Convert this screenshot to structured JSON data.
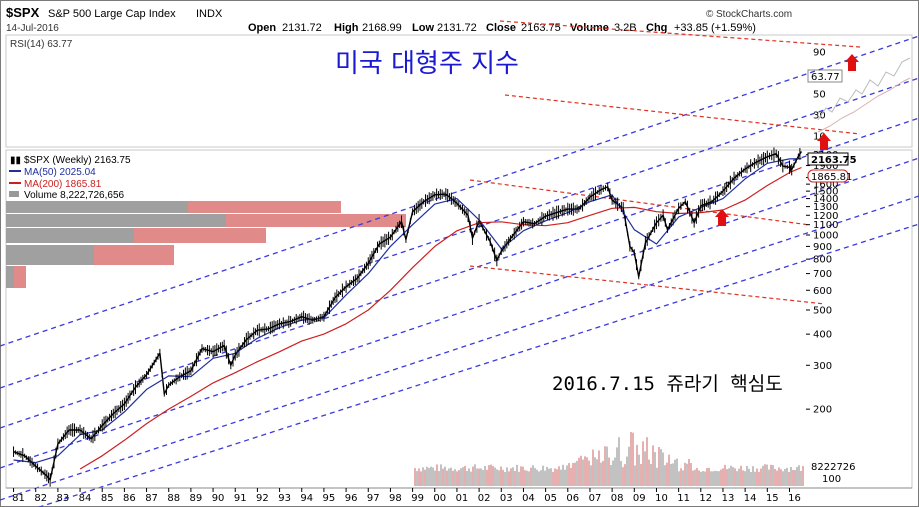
{
  "header": {
    "symbol": "$SPX",
    "name": "S&P 500 Large Cap Index",
    "exchange": "INDX",
    "date": "14-Jul-2016",
    "open_label": "Open",
    "open": "2131.72",
    "high_label": "High",
    "high": "2168.99",
    "low_label": "Low",
    "low": "2131.72",
    "close_label": "Close",
    "close": "2163.75",
    "volume_label": "Volume",
    "volume": "3.2B",
    "chg_label": "Chg",
    "chg": "+33.85 (+1.59%)",
    "brand": "StockCharts.com"
  },
  "rsi": {
    "label": "RSI(14) 63.77",
    "value": "63.77",
    "ticks": [
      "90",
      "70",
      "50",
      "30",
      "10"
    ]
  },
  "legend": {
    "price": "$SPX (Weekly) 2163.75",
    "ma50": "MA(50) 2025.04",
    "ma200": "MA(200) 1865.81",
    "volume": "Volume 8,222,726,656"
  },
  "annotations": {
    "title_kr": "미국 대형주 지수",
    "note_kr": "2016.7.15 쥬라기 핵심도"
  },
  "price_tags": {
    "close": "2163.75",
    "ma200": "1865.81",
    "volume": "8222726",
    "vol_tick": "100"
  },
  "colors": {
    "price": "#000000",
    "ma50": "#1f2fa0",
    "ma200": "#cc2020",
    "channel_blue": "#3a3ae0",
    "channel_red": "#e03020",
    "vbp_gray": "#a0a0a0",
    "vbp_red": "#e08a8a",
    "title_blue": "#1a1ad0",
    "arrow": "#e01010"
  },
  "chart_data": {
    "type": "line",
    "title": "S&P 500 Large Cap Index",
    "xlabel": "",
    "ylabel": "",
    "yscale": "log",
    "x_ticks": [
      "81",
      "82",
      "83",
      "84",
      "85",
      "86",
      "87",
      "88",
      "89",
      "90",
      "91",
      "92",
      "93",
      "94",
      "95",
      "96",
      "97",
      "98",
      "99",
      "00",
      "01",
      "02",
      "03",
      "04",
      "05",
      "06",
      "07",
      "08",
      "09",
      "10",
      "11",
      "12",
      "13",
      "14",
      "15",
      "16"
    ],
    "y_ticks": [
      2100,
      1900,
      1700,
      1600,
      1500,
      1400,
      1300,
      1200,
      1100,
      1000,
      900,
      800,
      700,
      600,
      500,
      400,
      300,
      200
    ],
    "ylim": [
      95,
      2250
    ],
    "xlim": [
      1980.75,
      2016.7
    ],
    "series": [
      {
        "name": "$SPX (Weekly)",
        "points": [
          [
            1981.0,
            135
          ],
          [
            1981.5,
            130
          ],
          [
            1982.0,
            118
          ],
          [
            1982.5,
            108
          ],
          [
            1982.65,
            104
          ],
          [
            1983.0,
            145
          ],
          [
            1983.5,
            165
          ],
          [
            1984.0,
            165
          ],
          [
            1984.5,
            152
          ],
          [
            1985.0,
            172
          ],
          [
            1985.5,
            192
          ],
          [
            1986.0,
            210
          ],
          [
            1986.5,
            245
          ],
          [
            1987.0,
            275
          ],
          [
            1987.6,
            335
          ],
          [
            1987.8,
            230
          ],
          [
            1988.0,
            250
          ],
          [
            1988.5,
            270
          ],
          [
            1989.0,
            285
          ],
          [
            1989.5,
            350
          ],
          [
            1990.0,
            340
          ],
          [
            1990.5,
            360
          ],
          [
            1990.8,
            300
          ],
          [
            1991.0,
            330
          ],
          [
            1991.5,
            380
          ],
          [
            1992.0,
            415
          ],
          [
            1992.5,
            420
          ],
          [
            1993.0,
            440
          ],
          [
            1993.5,
            450
          ],
          [
            1994.0,
            470
          ],
          [
            1994.5,
            455
          ],
          [
            1995.0,
            470
          ],
          [
            1995.5,
            560
          ],
          [
            1996.0,
            620
          ],
          [
            1996.5,
            670
          ],
          [
            1997.0,
            770
          ],
          [
            1997.5,
            920
          ],
          [
            1998.0,
            980
          ],
          [
            1998.5,
            1130
          ],
          [
            1998.7,
            960
          ],
          [
            1999.0,
            1240
          ],
          [
            1999.5,
            1360
          ],
          [
            2000.0,
            1450
          ],
          [
            2000.5,
            1460
          ],
          [
            2001.0,
            1340
          ],
          [
            2001.5,
            1200
          ],
          [
            2001.7,
            970
          ],
          [
            2002.0,
            1140
          ],
          [
            2002.5,
            940
          ],
          [
            2002.8,
            790
          ],
          [
            2003.0,
            860
          ],
          [
            2003.5,
            990
          ],
          [
            2004.0,
            1130
          ],
          [
            2004.5,
            1110
          ],
          [
            2005.0,
            1190
          ],
          [
            2005.5,
            1230
          ],
          [
            2006.0,
            1270
          ],
          [
            2006.5,
            1270
          ],
          [
            2007.0,
            1420
          ],
          [
            2007.5,
            1520
          ],
          [
            2007.8,
            1560
          ],
          [
            2008.0,
            1380
          ],
          [
            2008.5,
            1280
          ],
          [
            2008.8,
            900
          ],
          [
            2009.0,
            850
          ],
          [
            2009.2,
            680
          ],
          [
            2009.5,
            930
          ],
          [
            2010.0,
            1120
          ],
          [
            2010.3,
            1200
          ],
          [
            2010.5,
            1050
          ],
          [
            2011.0,
            1280
          ],
          [
            2011.3,
            1360
          ],
          [
            2011.7,
            1120
          ],
          [
            2012.0,
            1310
          ],
          [
            2012.5,
            1360
          ],
          [
            2013.0,
            1500
          ],
          [
            2013.5,
            1690
          ],
          [
            2014.0,
            1840
          ],
          [
            2014.5,
            1960
          ],
          [
            2015.0,
            2060
          ],
          [
            2015.4,
            2120
          ],
          [
            2015.7,
            1890
          ],
          [
            2016.0,
            1870
          ],
          [
            2016.1,
            1830
          ],
          [
            2016.4,
            2070
          ],
          [
            2016.54,
            2163.75
          ]
        ]
      },
      {
        "name": "MA(50)",
        "points": [
          [
            1981.0,
            125
          ],
          [
            1982.0,
            122
          ],
          [
            1983.0,
            130
          ],
          [
            1984.0,
            158
          ],
          [
            1985.0,
            165
          ],
          [
            1986.0,
            195
          ],
          [
            1987.0,
            240
          ],
          [
            1988.0,
            272
          ],
          [
            1989.0,
            270
          ],
          [
            1990.0,
            320
          ],
          [
            1991.0,
            335
          ],
          [
            1992.0,
            385
          ],
          [
            1993.0,
            425
          ],
          [
            1994.0,
            455
          ],
          [
            1995.0,
            465
          ],
          [
            1996.0,
            575
          ],
          [
            1997.0,
            700
          ],
          [
            1998.0,
            900
          ],
          [
            1999.0,
            1100
          ],
          [
            2000.0,
            1330
          ],
          [
            2001.0,
            1400
          ],
          [
            2002.0,
            1150
          ],
          [
            2003.0,
            880
          ],
          [
            2004.0,
            1040
          ],
          [
            2005.0,
            1140
          ],
          [
            2006.0,
            1230
          ],
          [
            2007.0,
            1360
          ],
          [
            2008.0,
            1450
          ],
          [
            2009.0,
            1050
          ],
          [
            2010.0,
            920
          ],
          [
            2011.0,
            1180
          ],
          [
            2012.0,
            1290
          ],
          [
            2013.0,
            1400
          ],
          [
            2014.0,
            1680
          ],
          [
            2015.0,
            1940
          ],
          [
            2016.0,
            2020
          ],
          [
            2016.54,
            2025.04
          ]
        ]
      },
      {
        "name": "MA(200)",
        "points": [
          [
            1984.0,
            115
          ],
          [
            1985.0,
            130
          ],
          [
            1986.0,
            150
          ],
          [
            1987.0,
            175
          ],
          [
            1988.0,
            200
          ],
          [
            1989.0,
            225
          ],
          [
            1990.0,
            255
          ],
          [
            1991.0,
            280
          ],
          [
            1992.0,
            310
          ],
          [
            1993.0,
            340
          ],
          [
            1994.0,
            375
          ],
          [
            1995.0,
            400
          ],
          [
            1996.0,
            440
          ],
          [
            1997.0,
            500
          ],
          [
            1998.0,
            600
          ],
          [
            1999.0,
            740
          ],
          [
            2000.0,
            900
          ],
          [
            2001.0,
            1040
          ],
          [
            2002.0,
            1120
          ],
          [
            2003.0,
            1130
          ],
          [
            2004.0,
            1100
          ],
          [
            2005.0,
            1090
          ],
          [
            2006.0,
            1120
          ],
          [
            2007.0,
            1200
          ],
          [
            2008.0,
            1280
          ],
          [
            2009.0,
            1290
          ],
          [
            2010.0,
            1240
          ],
          [
            2011.0,
            1220
          ],
          [
            2012.0,
            1230
          ],
          [
            2013.0,
            1260
          ],
          [
            2014.0,
            1380
          ],
          [
            2015.0,
            1580
          ],
          [
            2016.0,
            1780
          ],
          [
            2016.54,
            1865.81
          ]
        ]
      }
    ]
  }
}
